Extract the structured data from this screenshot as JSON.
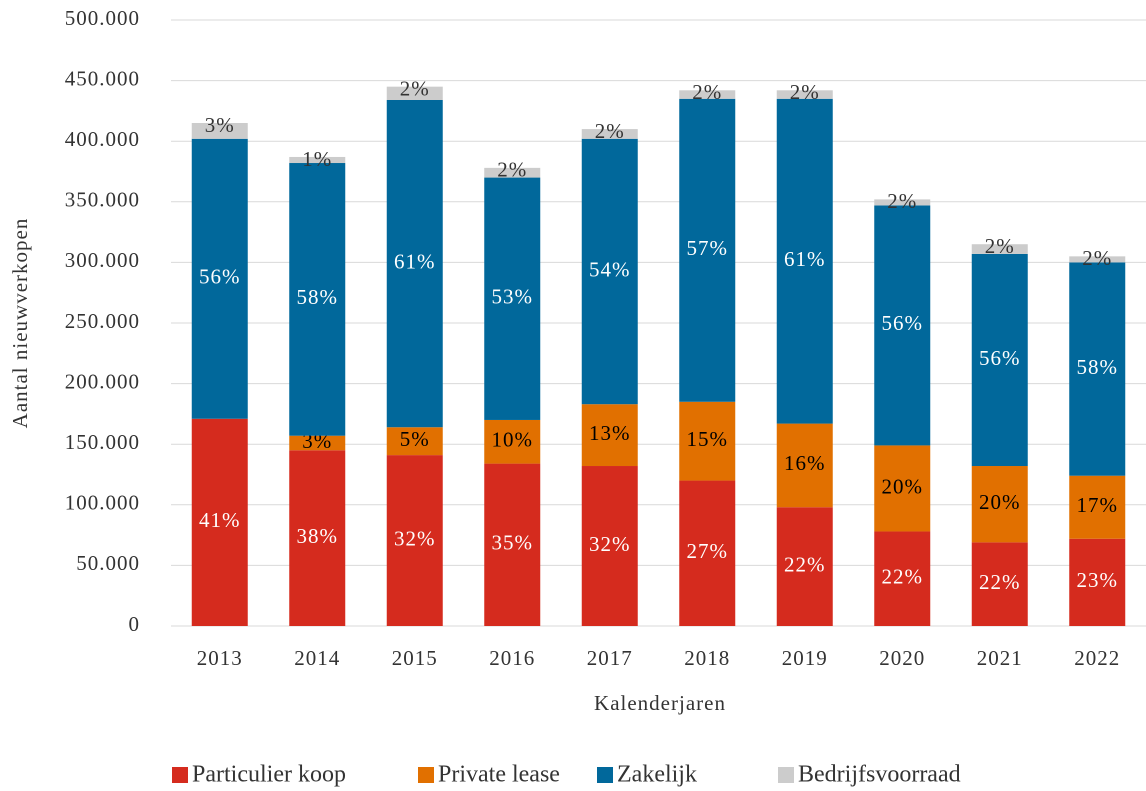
{
  "chart_data": {
    "type": "stacked_bar",
    "y_label": "Aantal nieuwverkopen",
    "x_label": "Kalenderjaren",
    "categories": [
      "2013",
      "2014",
      "2015",
      "2016",
      "2017",
      "2018",
      "2019",
      "2020",
      "2021",
      "2022"
    ],
    "series": [
      {
        "name": "Particulier koop",
        "color": "#d52b1e",
        "label_color": "#ffffff",
        "values": [
          171000,
          145000,
          141000,
          134000,
          132000,
          120000,
          98000,
          78000,
          69000,
          72000
        ],
        "value_labels": [
          "41%",
          "38%",
          "32%",
          "35%",
          "32%",
          "27%",
          "22%",
          "22%",
          "22%",
          "23%"
        ]
      },
      {
        "name": "Private lease",
        "color": "#e17000",
        "label_color": "#000000",
        "values": [
          0,
          12000,
          23000,
          36000,
          51000,
          65000,
          69000,
          71000,
          63000,
          52000
        ],
        "value_labels": [
          null,
          "3%",
          "5%",
          "10%",
          "13%",
          "15%",
          "16%",
          "20%",
          "20%",
          "17%"
        ]
      },
      {
        "name": "Zakelijk",
        "color": "#01689b",
        "label_color": "#ffffff",
        "values": [
          231000,
          225000,
          270000,
          200000,
          219000,
          250000,
          268000,
          198000,
          175000,
          176000
        ],
        "value_labels": [
          "56%",
          "58%",
          "61%",
          "53%",
          "54%",
          "57%",
          "61%",
          "56%",
          "56%",
          "58%"
        ]
      },
      {
        "name": "Bedrijfsvoorraad",
        "color": "#cccccc",
        "label_color": "#333333",
        "values": [
          13000,
          5000,
          11000,
          8000,
          8000,
          7000,
          7000,
          5000,
          8000,
          5000
        ],
        "value_labels": [
          "3%",
          "1%",
          "2%",
          "2%",
          "2%",
          "2%",
          "2%",
          "2%",
          "2%",
          "2%"
        ]
      }
    ],
    "ylim": [
      0,
      500000
    ],
    "yticks": [
      0,
      {
        "value": 50000,
        "label": "50.000"
      },
      {
        "value": 100000,
        "label": "100.000"
      },
      {
        "value": 150000,
        "label": "150.000"
      },
      {
        "value": 200000,
        "label": "200.000"
      },
      {
        "value": 250000,
        "label": "250.000"
      },
      {
        "value": 300000,
        "label": "300.000"
      },
      {
        "value": 350000,
        "label": "350.000"
      },
      {
        "value": 400000,
        "label": "400.000"
      },
      {
        "value": 450000,
        "label": "450.000"
      },
      {
        "value": 500000,
        "label": "500.000"
      }
    ],
    "grid": true,
    "legend": "bottom"
  }
}
